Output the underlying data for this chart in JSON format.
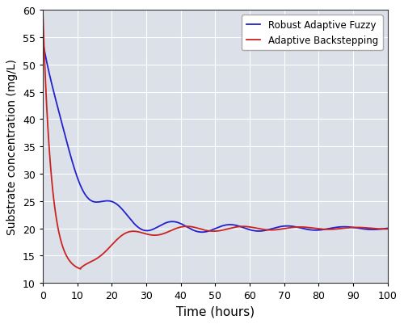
{
  "title": "",
  "xlabel": "Time (hours)",
  "ylabel": "Substrate concentration (mg/L)",
  "xlim": [
    0,
    100
  ],
  "ylim": [
    10,
    60
  ],
  "xticks": [
    0,
    10,
    20,
    30,
    40,
    50,
    60,
    70,
    80,
    90,
    100
  ],
  "yticks": [
    10,
    15,
    20,
    25,
    30,
    35,
    40,
    45,
    50,
    55,
    60
  ],
  "blue_label": "Robust Adaptive Fuzzy",
  "red_label": "Adaptive Backstepping",
  "blue_color": "#2222cc",
  "red_color": "#cc2222",
  "line_width": 1.3,
  "background_color": "#dce0e8",
  "grid_color": "#ffffff",
  "legend_loc": "upper right"
}
